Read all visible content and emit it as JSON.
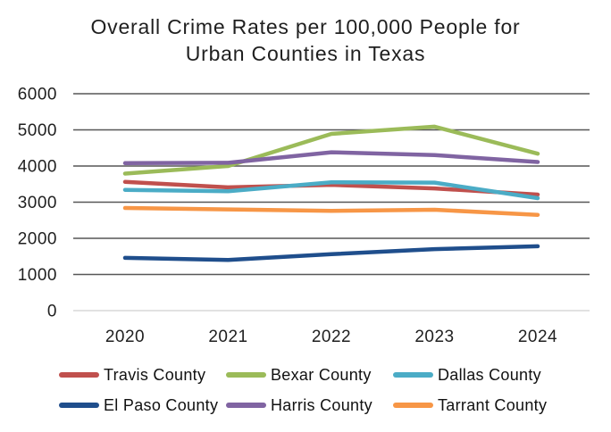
{
  "chart_data": {
    "type": "line",
    "title": "Overall Crime Rates per 100,000 People for Urban Counties in Texas",
    "title_lines": [
      "Overall Crime Rates per 100,000 People for",
      "Urban Counties in Texas"
    ],
    "categories": [
      "2020",
      "2021",
      "2022",
      "2023",
      "2024"
    ],
    "series": [
      {
        "name": "Travis County",
        "color": "#C0504D",
        "values": [
          3560,
          3410,
          3480,
          3380,
          3210
        ]
      },
      {
        "name": "Bexar County",
        "color": "#9BBB59",
        "values": [
          3790,
          4000,
          4890,
          5090,
          4340
        ]
      },
      {
        "name": "Dallas County",
        "color": "#4BACC6",
        "values": [
          3340,
          3300,
          3550,
          3540,
          3110
        ]
      },
      {
        "name": "El Paso County",
        "color": "#1F4E8C",
        "values": [
          1460,
          1400,
          1560,
          1700,
          1780
        ]
      },
      {
        "name": "Harris County",
        "color": "#8064A2",
        "values": [
          4080,
          4090,
          4380,
          4300,
          4110
        ]
      },
      {
        "name": "Tarrant County",
        "color": "#F79646",
        "values": [
          2840,
          2800,
          2760,
          2790,
          2650
        ]
      }
    ],
    "xlabel": "",
    "ylabel": "",
    "ylim": [
      0,
      6000
    ],
    "y_ticks": [
      0,
      1000,
      2000,
      3000,
      4000,
      5000,
      6000
    ],
    "grid": true,
    "legend_position": "bottom",
    "gridline_color": "#575757",
    "zero_gridline_color": "#D9D9D9",
    "axis_text_color": "#1F1F1F"
  }
}
